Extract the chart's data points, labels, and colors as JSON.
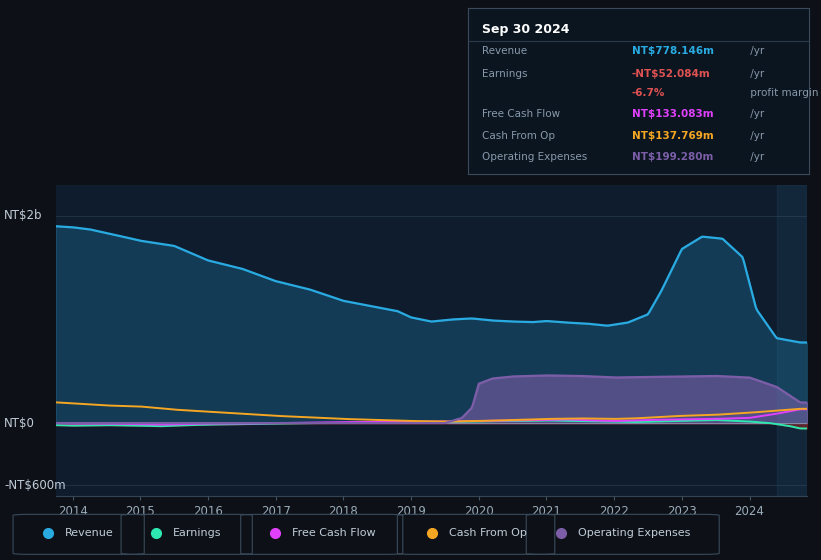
{
  "background_color": "#0d1117",
  "plot_bg_color": "#0e1c2e",
  "colors": {
    "revenue": "#29abe2",
    "earnings": "#2de8b0",
    "free_cash_flow": "#e040fb",
    "cash_from_op": "#f5a623",
    "operating_expenses": "#7b5ea7"
  },
  "ylabel_top": "NT$2b",
  "ylabel_zero": "NT$0",
  "ylabel_bottom": "-NT$600m",
  "rev_x": [
    2013.75,
    2014.0,
    2014.25,
    2014.6,
    2015.0,
    2015.5,
    2016.0,
    2016.5,
    2017.0,
    2017.5,
    2018.0,
    2018.4,
    2018.8,
    2019.0,
    2019.3,
    2019.6,
    2019.9,
    2020.2,
    2020.5,
    2020.8,
    2021.0,
    2021.3,
    2021.6,
    2021.9,
    2022.2,
    2022.5,
    2022.7,
    2023.0,
    2023.3,
    2023.6,
    2023.9,
    2024.1,
    2024.4,
    2024.75
  ],
  "rev_y": [
    1900,
    1890,
    1870,
    1820,
    1760,
    1710,
    1570,
    1490,
    1370,
    1290,
    1180,
    1130,
    1080,
    1020,
    980,
    1000,
    1010,
    990,
    980,
    975,
    985,
    970,
    960,
    940,
    970,
    1050,
    1280,
    1680,
    1800,
    1780,
    1600,
    1100,
    820,
    778
  ],
  "earn_x": [
    2013.75,
    2014.0,
    2014.5,
    2015.0,
    2015.3,
    2015.7,
    2016.0,
    2016.5,
    2017.0,
    2017.5,
    2018.0,
    2018.5,
    2019.0,
    2019.5,
    2020.0,
    2020.3,
    2020.6,
    2021.0,
    2021.5,
    2022.0,
    2022.3,
    2022.6,
    2022.9,
    2023.2,
    2023.5,
    2023.8,
    2024.0,
    2024.3,
    2024.6,
    2024.75
  ],
  "earn_y": [
    -20,
    -25,
    -20,
    -25,
    -30,
    -20,
    -15,
    -10,
    -5,
    0,
    0,
    5,
    10,
    10,
    15,
    20,
    20,
    25,
    20,
    15,
    10,
    15,
    20,
    25,
    30,
    20,
    15,
    0,
    -30,
    -52
  ],
  "fcf_x": [
    2013.75,
    2014.0,
    2014.5,
    2015.0,
    2015.3,
    2015.7,
    2016.0,
    2016.5,
    2017.0,
    2017.5,
    2018.0,
    2018.5,
    2019.0,
    2019.5,
    2020.0,
    2020.5,
    2021.0,
    2021.3,
    2021.7,
    2022.0,
    2022.5,
    2023.0,
    2023.5,
    2024.0,
    2024.4,
    2024.75
  ],
  "fcf_y": [
    0,
    -5,
    -5,
    -10,
    -15,
    -10,
    -5,
    -5,
    0,
    5,
    10,
    10,
    15,
    15,
    20,
    25,
    30,
    35,
    25,
    20,
    30,
    35,
    40,
    50,
    90,
    133
  ],
  "cop_x": [
    2013.75,
    2014.0,
    2014.5,
    2015.0,
    2015.5,
    2016.0,
    2016.5,
    2017.0,
    2017.5,
    2018.0,
    2018.5,
    2019.0,
    2019.5,
    2020.0,
    2020.5,
    2021.0,
    2021.5,
    2022.0,
    2022.3,
    2022.7,
    2023.0,
    2023.5,
    2024.0,
    2024.4,
    2024.75
  ],
  "cop_y": [
    200,
    190,
    170,
    160,
    130,
    110,
    90,
    70,
    55,
    40,
    30,
    20,
    15,
    20,
    30,
    40,
    45,
    40,
    45,
    60,
    70,
    80,
    100,
    120,
    138
  ],
  "opex_x": [
    2013.75,
    2019.5,
    2019.75,
    2019.9,
    2020.0,
    2020.2,
    2020.5,
    2021.0,
    2021.5,
    2022.0,
    2022.5,
    2023.0,
    2023.5,
    2024.0,
    2024.4,
    2024.75
  ],
  "opex_y": [
    0,
    0,
    50,
    150,
    380,
    430,
    450,
    460,
    455,
    440,
    445,
    450,
    455,
    440,
    350,
    199
  ],
  "ylim": [
    -700,
    2300
  ],
  "xlim": [
    2013.75,
    2024.85
  ],
  "xticks": [
    2014,
    2015,
    2016,
    2017,
    2018,
    2019,
    2020,
    2021,
    2022,
    2023,
    2024
  ],
  "y_NT2b": 2000,
  "y_NT0": 0,
  "y_NTm600": -600,
  "shade_start": 2024.4,
  "shade_end": 2024.85
}
